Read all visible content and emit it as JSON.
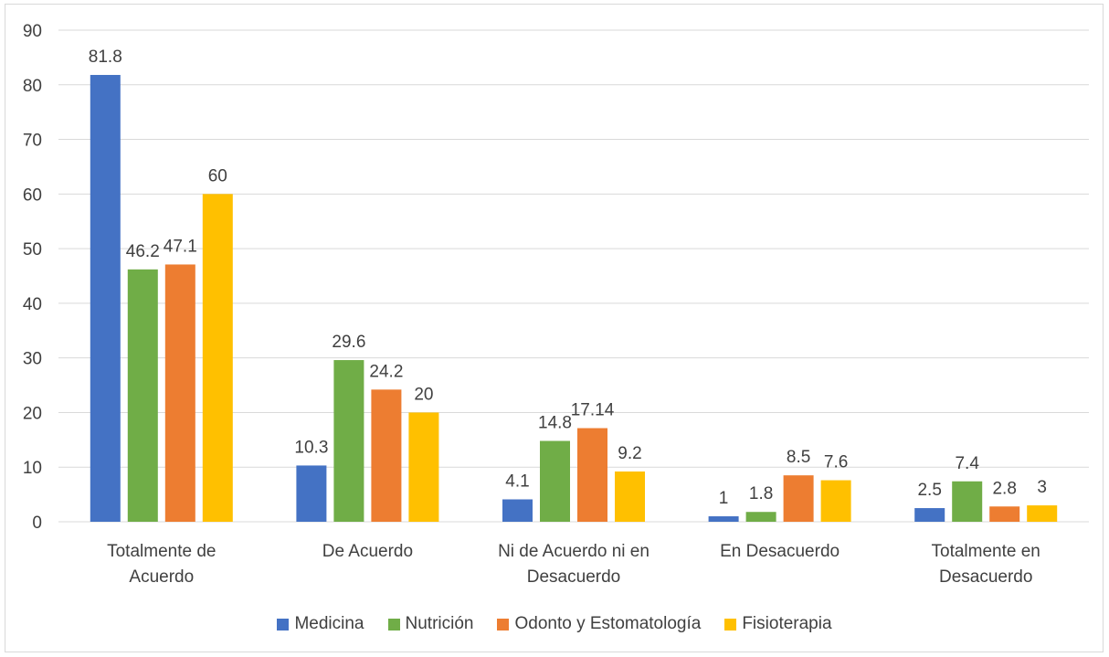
{
  "chart_data": {
    "type": "bar",
    "categories": [
      [
        "Totalmente de",
        "Acuerdo"
      ],
      [
        "De Acuerdo"
      ],
      [
        "Ni de Acuerdo ni en",
        "Desacuerdo"
      ],
      [
        "En Desacuerdo"
      ],
      [
        "Totalmente en",
        "Desacuerdo"
      ]
    ],
    "series": [
      {
        "name": "Medicina",
        "color": "#4472c4",
        "values": [
          81.8,
          10.3,
          4.1,
          1,
          2.5
        ],
        "labels": [
          "81.8",
          "10.3",
          "4.1",
          "1",
          "2.5"
        ]
      },
      {
        "name": "Nutrición",
        "color": "#70ad47",
        "values": [
          46.2,
          29.6,
          14.8,
          1.8,
          7.4
        ],
        "labels": [
          "46.2",
          "29.6",
          "14.8",
          "1.8",
          "7.4"
        ]
      },
      {
        "name": "Odonto y Estomatología",
        "color": "#ed7d31",
        "values": [
          47.1,
          24.2,
          17.14,
          8.5,
          2.8
        ],
        "labels": [
          "47.1",
          "24.2",
          "17.14",
          "8.5",
          "2.8"
        ]
      },
      {
        "name": "Fisioterapia",
        "color": "#ffc000",
        "values": [
          60,
          20,
          9.2,
          7.6,
          3
        ],
        "labels": [
          "60",
          "20",
          "9.2",
          "7.6",
          "3"
        ]
      }
    ],
    "ylim": [
      0,
      90
    ],
    "yticks": [
      0,
      10,
      20,
      30,
      40,
      50,
      60,
      70,
      80,
      90
    ],
    "grid": true,
    "legend": "bottom",
    "title": "",
    "xlabel": "",
    "ylabel": ""
  }
}
